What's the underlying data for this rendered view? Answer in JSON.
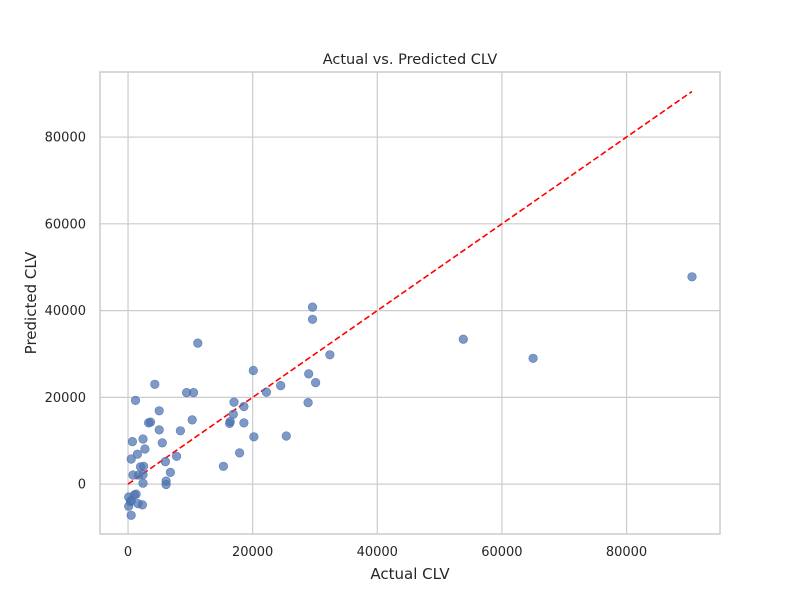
{
  "chart_data": {
    "type": "scatter",
    "title": "Actual vs. Predicted CLV",
    "xlabel": "Actual CLV",
    "ylabel": "Predicted CLV",
    "xlim": [
      -4500,
      95000
    ],
    "ylim": [
      -11500,
      95000
    ],
    "xticks": [
      0,
      20000,
      40000,
      60000,
      80000
    ],
    "yticks": [
      0,
      20000,
      40000,
      60000,
      80000
    ],
    "xtick_labels": [
      "0",
      "20000",
      "40000",
      "60000",
      "80000"
    ],
    "ytick_labels": [
      "0",
      "20000",
      "40000",
      "60000",
      "80000"
    ],
    "grid": true,
    "colors": {
      "points": "#4c72b0",
      "reference_line": "#ff0000",
      "grid": "#cccccc",
      "axes_edge": "#cccccc"
    },
    "reference_line": {
      "style": "dashed",
      "x": [
        0,
        90500
      ],
      "y": [
        0,
        90500
      ]
    },
    "series": [
      {
        "points": [
          [
            90500,
            47800
          ],
          [
            65000,
            29000
          ],
          [
            53800,
            33400
          ],
          [
            32400,
            29800
          ],
          [
            30100,
            23400
          ],
          [
            29600,
            40800
          ],
          [
            29600,
            38000
          ],
          [
            29000,
            25400
          ],
          [
            28900,
            18800
          ],
          [
            25400,
            11100
          ],
          [
            24500,
            22700
          ],
          [
            22200,
            21200
          ],
          [
            20100,
            26200
          ],
          [
            20200,
            10900
          ],
          [
            18600,
            17900
          ],
          [
            18600,
            14100
          ],
          [
            17900,
            7200
          ],
          [
            17000,
            18900
          ],
          [
            16900,
            16100
          ],
          [
            16400,
            14400
          ],
          [
            16300,
            14000
          ],
          [
            15300,
            4100
          ],
          [
            11200,
            32500
          ],
          [
            10500,
            21100
          ],
          [
            9400,
            21100
          ],
          [
            10300,
            14800
          ],
          [
            8400,
            12300
          ],
          [
            7800,
            6400
          ],
          [
            6800,
            2700
          ],
          [
            6100,
            700
          ],
          [
            6100,
            -100
          ],
          [
            6000,
            5200
          ],
          [
            5500,
            9500
          ],
          [
            5000,
            16900
          ],
          [
            5000,
            12500
          ],
          [
            4300,
            23000
          ],
          [
            3600,
            14300
          ],
          [
            3300,
            14100
          ],
          [
            2700,
            8100
          ],
          [
            2400,
            10400
          ],
          [
            2500,
            4100
          ],
          [
            2400,
            2200
          ],
          [
            2400,
            200
          ],
          [
            2300,
            -4800
          ],
          [
            2000,
            4000
          ],
          [
            1700,
            2100
          ],
          [
            1500,
            6900
          ],
          [
            1600,
            -4500
          ],
          [
            1200,
            19300
          ],
          [
            1300,
            -2300
          ],
          [
            1000,
            -2500
          ],
          [
            800,
            2100
          ],
          [
            700,
            9800
          ],
          [
            500,
            5800
          ],
          [
            500,
            -3800
          ],
          [
            400,
            -4000
          ],
          [
            500,
            -7200
          ],
          [
            100,
            -3000
          ],
          [
            100,
            -5100
          ]
        ]
      }
    ]
  }
}
